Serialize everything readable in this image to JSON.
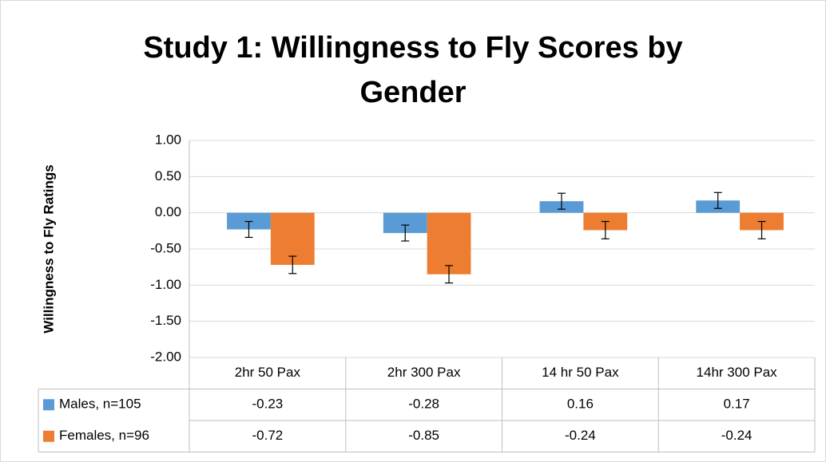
{
  "chart_data": {
    "type": "bar",
    "title_lines": [
      "Study 1: Willingness to Fly Scores by",
      "Gender"
    ],
    "y_label": "Willingness to Fly Ratings",
    "categories": [
      "2hr 50 Pax",
      "2hr 300 Pax",
      "14 hr 50 Pax",
      "14hr 300 Pax"
    ],
    "series": [
      {
        "name": "Males, n=105",
        "color": "#5b9bd5",
        "values": [
          -0.23,
          -0.28,
          0.16,
          0.17
        ],
        "errors": [
          0.11,
          0.11,
          0.11,
          0.11
        ]
      },
      {
        "name": "Females, n=96",
        "color": "#ed7d31",
        "values": [
          -0.72,
          -0.85,
          -0.24,
          -0.24
        ],
        "errors": [
          0.12,
          0.12,
          0.12,
          0.12
        ]
      }
    ],
    "ylim": [
      -2,
      1
    ],
    "yticks": [
      {
        "value": 1,
        "label": "1.00"
      },
      {
        "value": 0.5,
        "label": "0.50"
      },
      {
        "value": 0,
        "label": "0.00"
      },
      {
        "value": -0.5,
        "label": "-0.50"
      },
      {
        "value": -1,
        "label": "-1.00"
      },
      {
        "value": -1.5,
        "label": "-1.50"
      },
      {
        "value": -2,
        "label": "-2.00"
      }
    ],
    "grid": true,
    "data_table": true
  }
}
